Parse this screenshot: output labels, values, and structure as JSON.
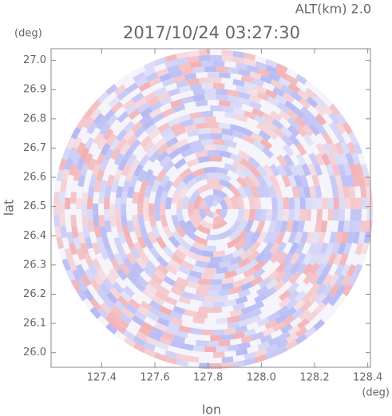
{
  "chart_data": {
    "type": "radar-ppi",
    "title": "2017/10/24 03:27:30",
    "subtitle": "ALT(km) 2.0",
    "x_label": "lon",
    "y_label": "lat",
    "x_unit": "(deg)",
    "y_unit": "(deg)",
    "xlim": [
      127.21,
      128.41
    ],
    "ylim": [
      25.95,
      27.04
    ],
    "xticks": [
      127.4,
      127.6,
      127.8,
      {
        "value": 128,
        "label": "128.0"
      },
      128.2,
      128.4
    ],
    "yticks": [
      {
        "value": 26,
        "label": "26.0"
      },
      26.1,
      26.2,
      26.3,
      26.4,
      26.5,
      26.6,
      26.7,
      26.8,
      26.9,
      {
        "value": 27,
        "label": "27.0"
      }
    ]
  }
}
